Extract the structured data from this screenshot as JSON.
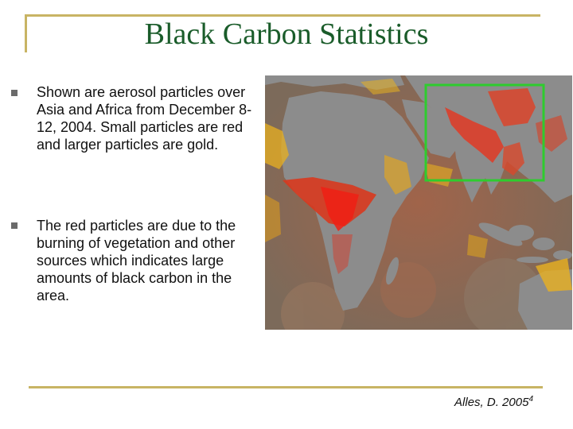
{
  "slide": {
    "title": "Black Carbon Statistics",
    "bullets": [
      "Shown are aerosol particles over Asia and Africa from December 8-12, 2004. Small particles are red and larger particles are gold.",
      "The red particles are due to the burning of vegetation and other sources which indicates large amounts of black carbon in the area."
    ],
    "citation": {
      "text": "Alles, D. 2005",
      "superscript": "4"
    }
  },
  "colors": {
    "title": "#1a5c2a",
    "frame": "#c8b464",
    "highlight_box": "#2ecc2e",
    "small_particles": "#e0281e",
    "large_particles": "#e8b020",
    "land": "#8c8c8c"
  }
}
